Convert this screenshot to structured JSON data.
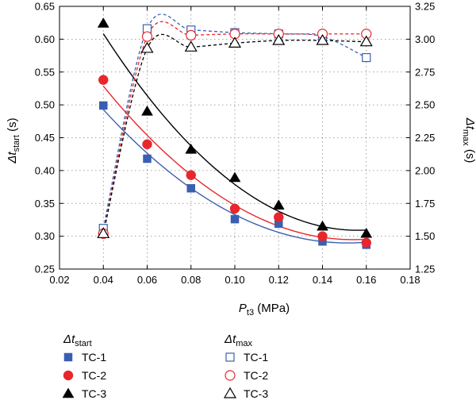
{
  "chart_data": {
    "type": "scatter",
    "xlabel": {
      "main": "P",
      "sub": "t3",
      "unit": " (MPa)"
    },
    "ylabel_left": {
      "main": "Δt",
      "sub": "start",
      "unit": " (s)"
    },
    "ylabel_right": {
      "main": "Δt",
      "sub": "max",
      "unit": " (s)"
    },
    "xlim": [
      0.02,
      0.18
    ],
    "ylim_left": [
      0.25,
      0.65
    ],
    "ylim_right": [
      1.25,
      3.25
    ],
    "x_ticks": [
      "0.02",
      "0.04",
      "0.06",
      "0.08",
      "0.10",
      "0.12",
      "0.14",
      "0.16",
      "0.18"
    ],
    "y_left_ticks": [
      "0.25",
      "0.30",
      "0.35",
      "0.40",
      "0.45",
      "0.50",
      "0.55",
      "0.60",
      "0.65"
    ],
    "y_right_ticks": [
      "1.25",
      "1.50",
      "1.75",
      "2.00",
      "2.25",
      "2.50",
      "2.75",
      "3.00",
      "3.25"
    ],
    "grid": "dotted",
    "legend_groups": [
      {
        "title_main": "Δt",
        "title_sub": "start"
      },
      {
        "title_main": "Δt",
        "title_sub": "max"
      }
    ],
    "x": [
      0.04,
      0.06,
      0.08,
      0.1,
      0.12,
      0.14,
      0.16
    ],
    "series": [
      {
        "name": "TC-1",
        "group": "start",
        "axis": "left",
        "marker": "square",
        "filled": true,
        "color": "#3a5fb0",
        "values": [
          0.499,
          0.418,
          0.373,
          0.326,
          0.319,
          0.292,
          0.287
        ]
      },
      {
        "name": "TC-2",
        "group": "start",
        "axis": "left",
        "marker": "circle",
        "filled": true,
        "color": "#e8262b",
        "values": [
          0.538,
          0.44,
          0.393,
          0.342,
          0.329,
          0.3,
          0.29
        ]
      },
      {
        "name": "TC-3",
        "group": "start",
        "axis": "left",
        "marker": "triangle",
        "filled": true,
        "color": "#000000",
        "values": [
          0.624,
          0.49,
          0.432,
          0.389,
          0.347,
          0.315,
          0.304
        ]
      },
      {
        "name": "TC-1",
        "group": "max",
        "axis": "right",
        "marker": "square",
        "filled": false,
        "color": "#3a5fb0",
        "values": [
          1.56,
          3.08,
          3.07,
          3.05,
          3.04,
          3.02,
          2.86
        ]
      },
      {
        "name": "TC-2",
        "group": "max",
        "axis": "right",
        "marker": "circle",
        "filled": false,
        "color": "#e8262b",
        "values": [
          1.52,
          3.02,
          3.03,
          3.04,
          3.04,
          3.04,
          3.04
        ]
      },
      {
        "name": "TC-3",
        "group": "max",
        "axis": "right",
        "marker": "triangle",
        "filled": false,
        "color": "#000000",
        "values": [
          1.52,
          2.93,
          2.94,
          2.97,
          2.99,
          2.99,
          2.98
        ]
      }
    ]
  }
}
